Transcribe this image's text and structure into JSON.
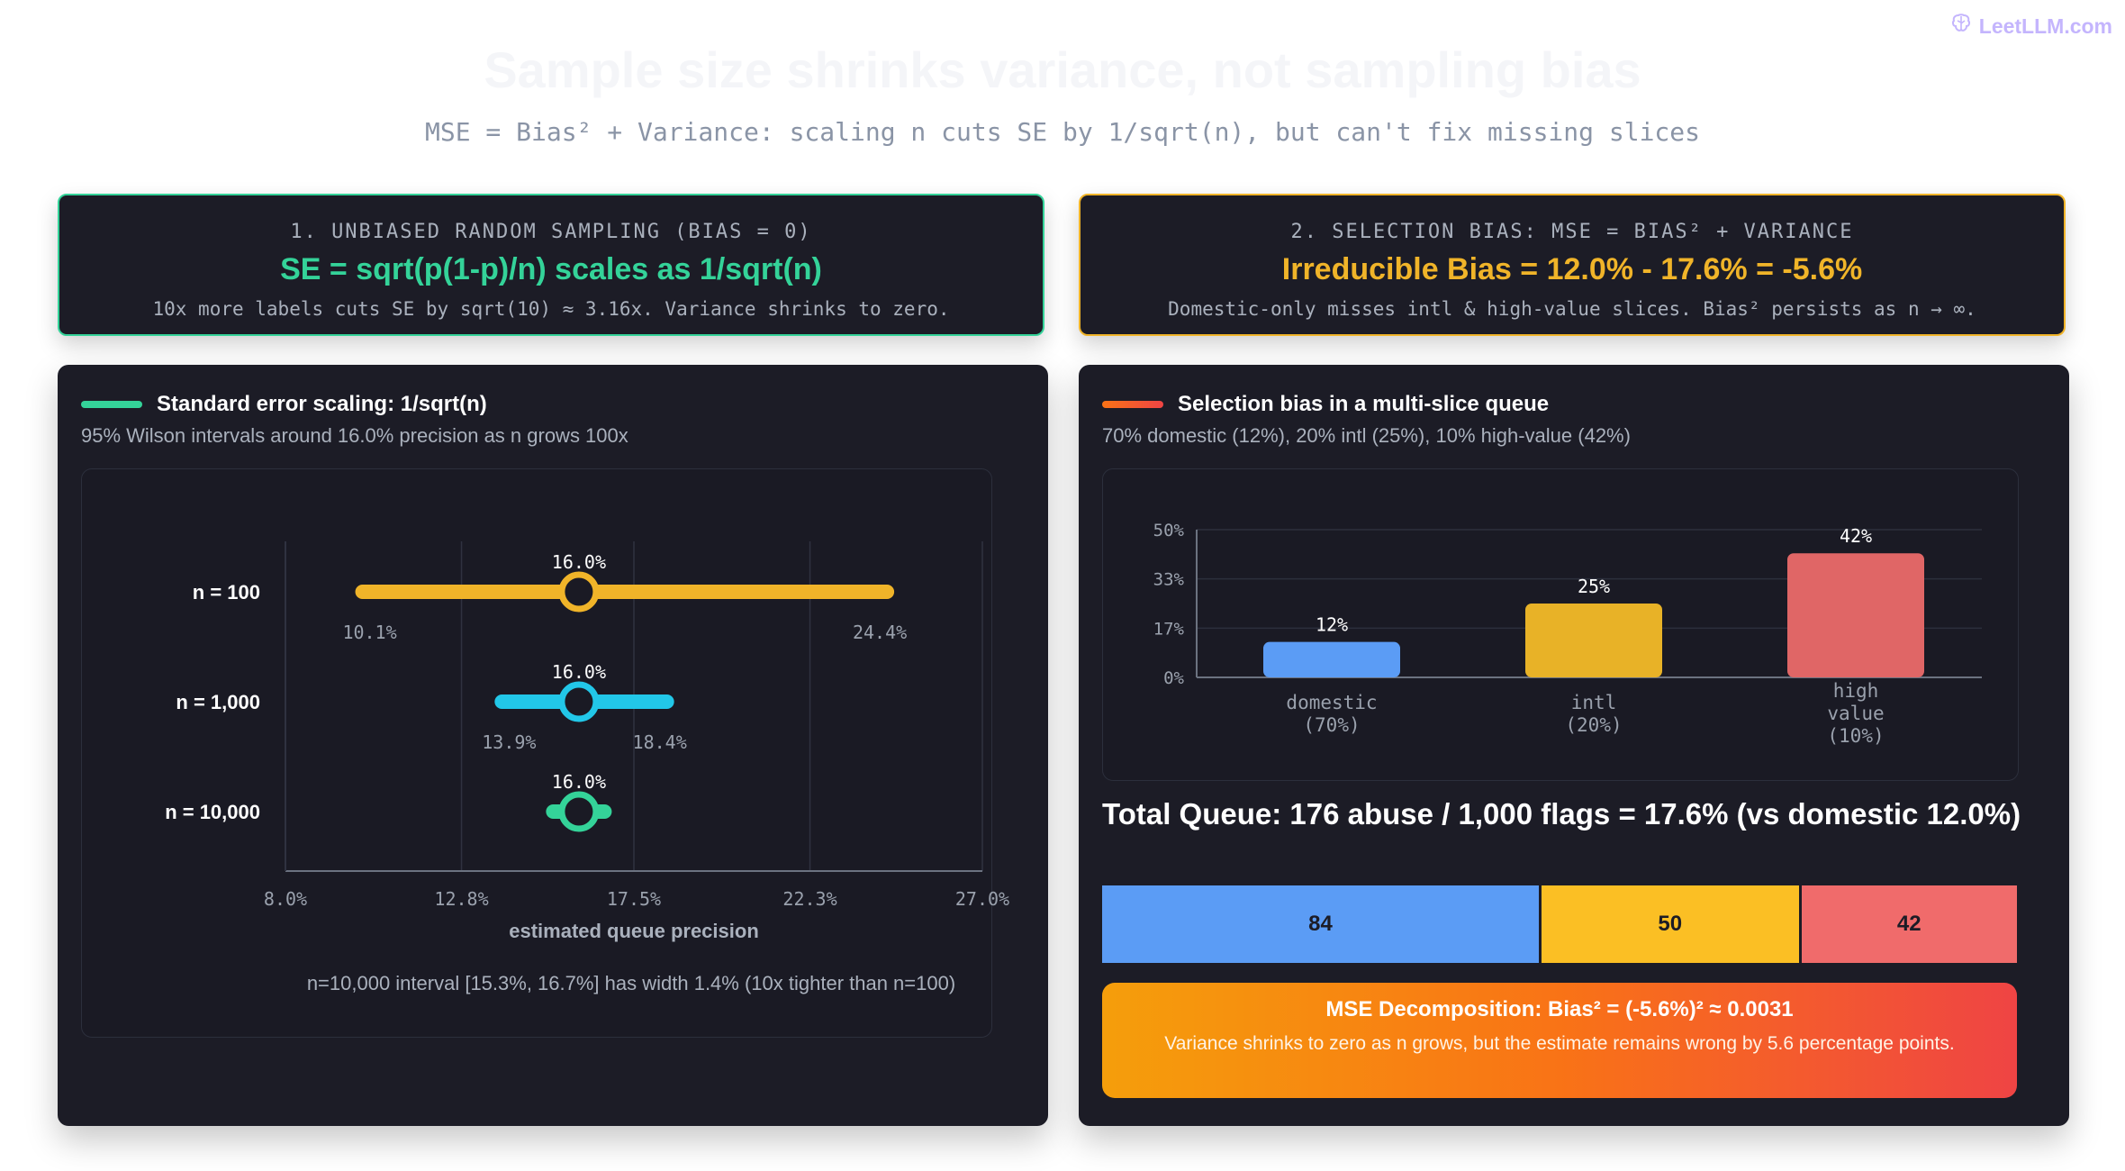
{
  "brand": {
    "logo_icon": "brain-icon",
    "name": "LeetLLM.com"
  },
  "header": {
    "title": "Sample size shrinks variance, not sampling bias",
    "subtitle": "MSE = Bias² + Variance: scaling n cuts SE by 1/sqrt(n), but can't fix missing slices"
  },
  "colors": {
    "green": "#34d399",
    "amber": "#f0b429",
    "cyan": "#22c7e8",
    "blue": "#5b9cf5",
    "red": "#f06b6b",
    "orange": "#f97316"
  },
  "banners": {
    "left": {
      "kicker": "1. UNBIASED RANDOM SAMPLING (BIAS = 0)",
      "headline": "SE = sqrt(p(1-p)/n) scales as 1/sqrt(n)",
      "desc": "10x more labels cuts SE by sqrt(10) ≈ 3.16x. Variance shrinks to zero."
    },
    "right": {
      "kicker": "2. SELECTION BIAS: MSE = BIAS² + VARIANCE",
      "headline": "Irreducible Bias = 12.0% - 17.6% = -5.6%",
      "desc": "Domestic-only misses intl & high-value slices. Bias² persists as n → ∞."
    }
  },
  "left_panel": {
    "title": "Standard error scaling: 1/sqrt(n)",
    "subtitle": "95% Wilson intervals around 16.0% precision as n grows 100x",
    "footnote": "n=10,000 interval [15.3%, 16.7%] has width 1.4% (10x tighter than n=100)"
  },
  "right_panel": {
    "title": "Selection bias in a multi-slice queue",
    "subtitle": "70% domestic (12%), 20% intl (25%), 10% high-value (42%)",
    "total_queue": "Total Queue: 176 abuse / 1,000 flags = 17.6%  (vs domestic 12.0%)",
    "mse_title": "MSE Decomposition: Bias² = (-5.6%)² ≈ 0.0031",
    "mse_desc": "Variance shrinks to zero as n grows, but the estimate remains wrong by 5.6 percentage points."
  },
  "chart_data": [
    {
      "type": "interval",
      "xlabel": "estimated queue precision",
      "xlim": [
        8.0,
        27.0
      ],
      "x_ticks": [
        "8.0%",
        "12.8%",
        "17.5%",
        "22.3%",
        "27.0%"
      ],
      "x_tick_values": [
        8.0,
        12.8,
        17.5,
        22.3,
        27.0
      ],
      "grid": true,
      "rows": [
        {
          "label": "n = 100",
          "point": 16.0,
          "low": 10.1,
          "high": 24.4,
          "point_label": "16.0%",
          "low_label": "10.1%",
          "high_label": "24.4%",
          "color": "#f0b429"
        },
        {
          "label": "n = 1,000",
          "point": 16.0,
          "low": 13.9,
          "high": 18.4,
          "point_label": "16.0%",
          "low_label": "13.9%",
          "high_label": "18.4%",
          "color": "#22c7e8"
        },
        {
          "label": "n = 10,000",
          "point": 16.0,
          "low": 15.3,
          "high": 16.7,
          "point_label": "16.0%",
          "low_label": "",
          "high_label": "",
          "color": "#34d399"
        }
      ]
    },
    {
      "type": "bar",
      "categories": [
        [
          "domestic",
          "(70%)"
        ],
        [
          "intl",
          "(20%)"
        ],
        [
          "high",
          "value",
          "(10%)"
        ]
      ],
      "values": [
        12,
        25,
        42
      ],
      "value_labels": [
        "12%",
        "25%",
        "42%"
      ],
      "colors": [
        "#5b9cf5",
        "#e8b227",
        "#e06666"
      ],
      "ylim": [
        0,
        50
      ],
      "y_ticks": [
        "0%",
        "17%",
        "33%",
        "50%"
      ],
      "y_tick_values": [
        0,
        16.67,
        33.33,
        50
      ],
      "grid": true
    },
    {
      "type": "stacked-bar",
      "segments": [
        {
          "label": "84",
          "value": 84,
          "color": "#5b9cf5"
        },
        {
          "label": "50",
          "value": 50,
          "color": "#fbbf24"
        },
        {
          "label": "42",
          "value": 42,
          "color": "#f06b6b"
        }
      ]
    }
  ]
}
